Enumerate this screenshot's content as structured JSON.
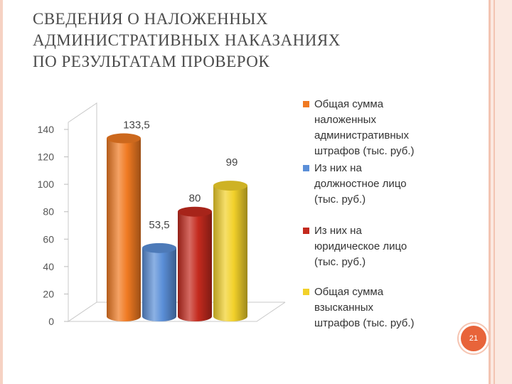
{
  "title_lines": [
    "СВЕДЕНИЯ О НАЛОЖЕННЫХ",
    "АДМИНИСТРАТИВНЫХ НАКАЗАНИЯХ",
    "ПО РЕЗУЛЬТАТАМ ПРОВЕРОК"
  ],
  "page_number": "21",
  "colors": {
    "accent": "#e8643a",
    "frame": "#f3c4b2"
  },
  "chart_data": {
    "type": "bar",
    "title": "",
    "xlabel": "",
    "ylabel": "",
    "ylim": [
      0,
      140
    ],
    "yticks": [
      "0",
      "20",
      "40",
      "60",
      "80",
      "100",
      "120",
      "140"
    ],
    "ytick_values": [
      0,
      20,
      40,
      60,
      80,
      100,
      120,
      140
    ],
    "grid": false,
    "legend_position": "right",
    "style": "3d-cylinder",
    "series": [
      {
        "name": "Общая сумма\nналоженных\nадминистративных\nштрафов (тыс. руб.)",
        "values": [
          133.5
        ],
        "label": "133,5",
        "color": "#f07a22"
      },
      {
        "name": "Из них на\nдолжностное лицо\n(тыс. руб.)",
        "values": [
          53.5
        ],
        "label": "53,5",
        "color": "#5b8fd8"
      },
      {
        "name": "Из них на\nюридическое лицо\n(тыс. руб.)",
        "values": [
          80
        ],
        "label": "80",
        "color": "#c42a1e"
      },
      {
        "name": "Общая сумма\nвзысканных\nштрафов (тыс. руб.)",
        "values": [
          99
        ],
        "label": "99",
        "color": "#f2d12a"
      }
    ]
  }
}
